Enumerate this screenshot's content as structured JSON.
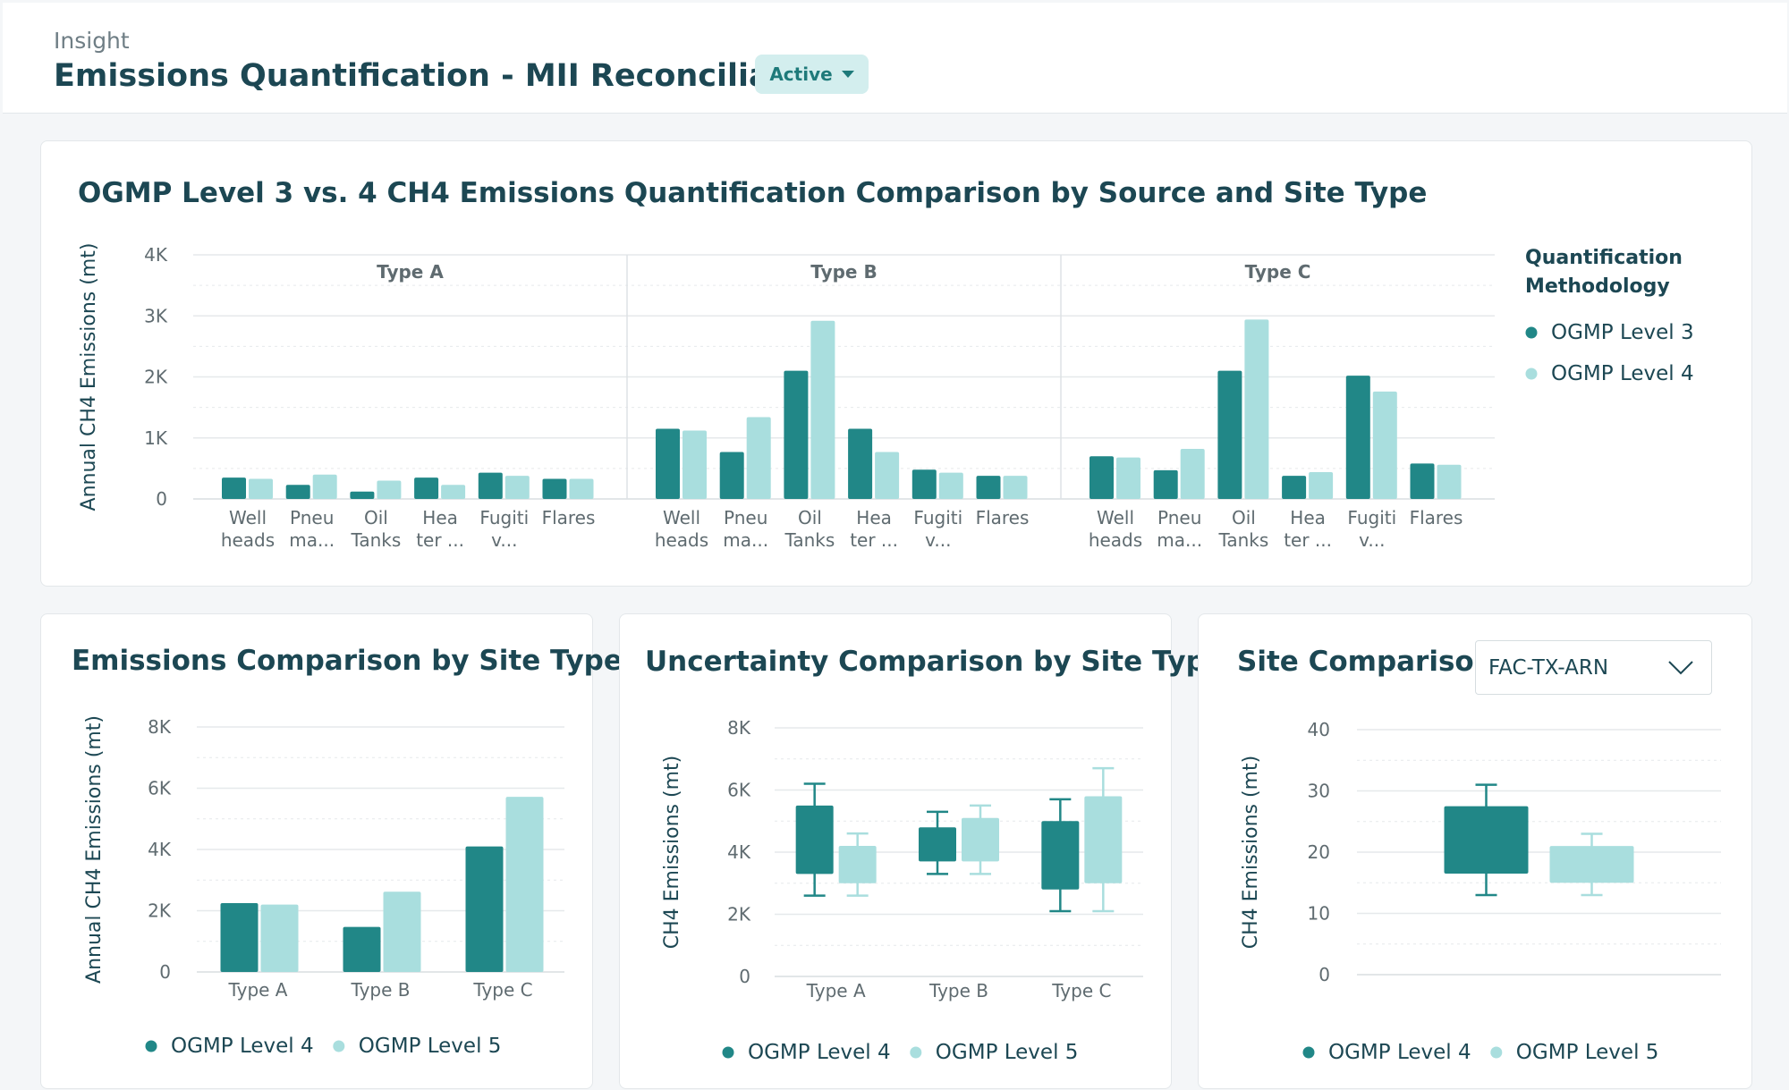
{
  "header": {
    "breadcrumb": "Insight",
    "title": "Emissions Quantification - MII Reconciliation",
    "status_label": "Active"
  },
  "colors": {
    "level_dark": "#218787",
    "level_light": "#a9dede",
    "grid": "#e6e9eb",
    "text": "#1c4753",
    "axis_text": "#5f6b70"
  },
  "site_select": {
    "value": "FAC-TX-ARN"
  },
  "chart_data": [
    {
      "id": "source_site",
      "type": "bar",
      "title": "OGMP Level 3 vs. 4 CH4 Emissions Quantification Comparison by Source and Site Type",
      "ylabel": "Annual CH4 Emissions (mt)",
      "ylim": [
        0,
        4000
      ],
      "yticks": [
        "0",
        "1K",
        "2K",
        "3K",
        "4K"
      ],
      "legend_title": "Quantification Methodology",
      "legend": [
        "OGMP Level 3",
        "OGMP Level 4"
      ],
      "categories": [
        [
          "Well",
          "heads"
        ],
        [
          "Pneu",
          "ma..."
        ],
        [
          "Oil",
          "Tanks"
        ],
        [
          "Hea",
          "ter ..."
        ],
        [
          "Fugiti",
          "v..."
        ],
        [
          "Flares"
        ]
      ],
      "groups": [
        {
          "name": "Type A",
          "level3": [
            350,
            230,
            120,
            350,
            430,
            330
          ],
          "level4": [
            330,
            400,
            300,
            230,
            380,
            330
          ]
        },
        {
          "name": "Type B",
          "level3": [
            1150,
            770,
            2100,
            1150,
            480,
            380
          ],
          "level4": [
            1120,
            1340,
            2920,
            770,
            430,
            380
          ]
        },
        {
          "name": "Type C",
          "level3": [
            700,
            470,
            2100,
            380,
            2020,
            580
          ],
          "level4": [
            680,
            820,
            2940,
            440,
            1760,
            560
          ]
        }
      ]
    },
    {
      "id": "site_type",
      "type": "bar",
      "title": "Emissions Comparison by Site Type",
      "ylabel": "Annual CH4 Emissions (mt)",
      "ylim": [
        0,
        8000
      ],
      "yticks": [
        "0",
        "2K",
        "4K",
        "6K",
        "8K"
      ],
      "categories": [
        "Type A",
        "Type B",
        "Type C"
      ],
      "legend": [
        "OGMP Level 4",
        "OGMP Level 5"
      ],
      "series": [
        {
          "name": "OGMP Level 4",
          "values": [
            2250,
            1470,
            4100
          ]
        },
        {
          "name": "OGMP Level 5",
          "values": [
            2200,
            2620,
            5720
          ]
        }
      ]
    },
    {
      "id": "uncertainty",
      "type": "box",
      "title": "Uncertainty Comparison by Site Type",
      "ylabel": "CH4 Emissions (mt)",
      "ylim": [
        0,
        8000
      ],
      "yticks": [
        "0",
        "2K",
        "4K",
        "6K",
        "8K"
      ],
      "categories": [
        "Type A",
        "Type B",
        "Type C"
      ],
      "legend": [
        "OGMP Level 4",
        "OGMP Level 5"
      ],
      "series": [
        {
          "name": "OGMP Level 4",
          "boxes": [
            {
              "min": 2600,
              "q1": 3300,
              "q3": 5500,
              "max": 6200
            },
            {
              "min": 3300,
              "q1": 3700,
              "q3": 4800,
              "max": 5300
            },
            {
              "min": 2100,
              "q1": 2800,
              "q3": 5000,
              "max": 5700
            }
          ]
        },
        {
          "name": "OGMP Level 5",
          "boxes": [
            {
              "min": 2600,
              "q1": 3000,
              "q3": 4200,
              "max": 4600
            },
            {
              "min": 3300,
              "q1": 3700,
              "q3": 5100,
              "max": 5500
            },
            {
              "min": 2100,
              "q1": 3000,
              "q3": 5800,
              "max": 6700
            }
          ]
        }
      ]
    },
    {
      "id": "site_comparison",
      "type": "box",
      "title": "Site Comparison",
      "ylabel": "CH4 Emissions (mt)",
      "ylim": [
        0,
        40
      ],
      "yticks": [
        "0",
        "10",
        "20",
        "30",
        "40"
      ],
      "categories": [
        ""
      ],
      "legend": [
        "OGMP Level 4",
        "OGMP Level 5"
      ],
      "series": [
        {
          "name": "OGMP Level 4",
          "boxes": [
            {
              "min": 13,
              "q1": 16.5,
              "q3": 27.5,
              "max": 31
            }
          ]
        },
        {
          "name": "OGMP Level 5",
          "boxes": [
            {
              "min": 13,
              "q1": 15,
              "q3": 21,
              "max": 23
            }
          ]
        }
      ]
    }
  ]
}
